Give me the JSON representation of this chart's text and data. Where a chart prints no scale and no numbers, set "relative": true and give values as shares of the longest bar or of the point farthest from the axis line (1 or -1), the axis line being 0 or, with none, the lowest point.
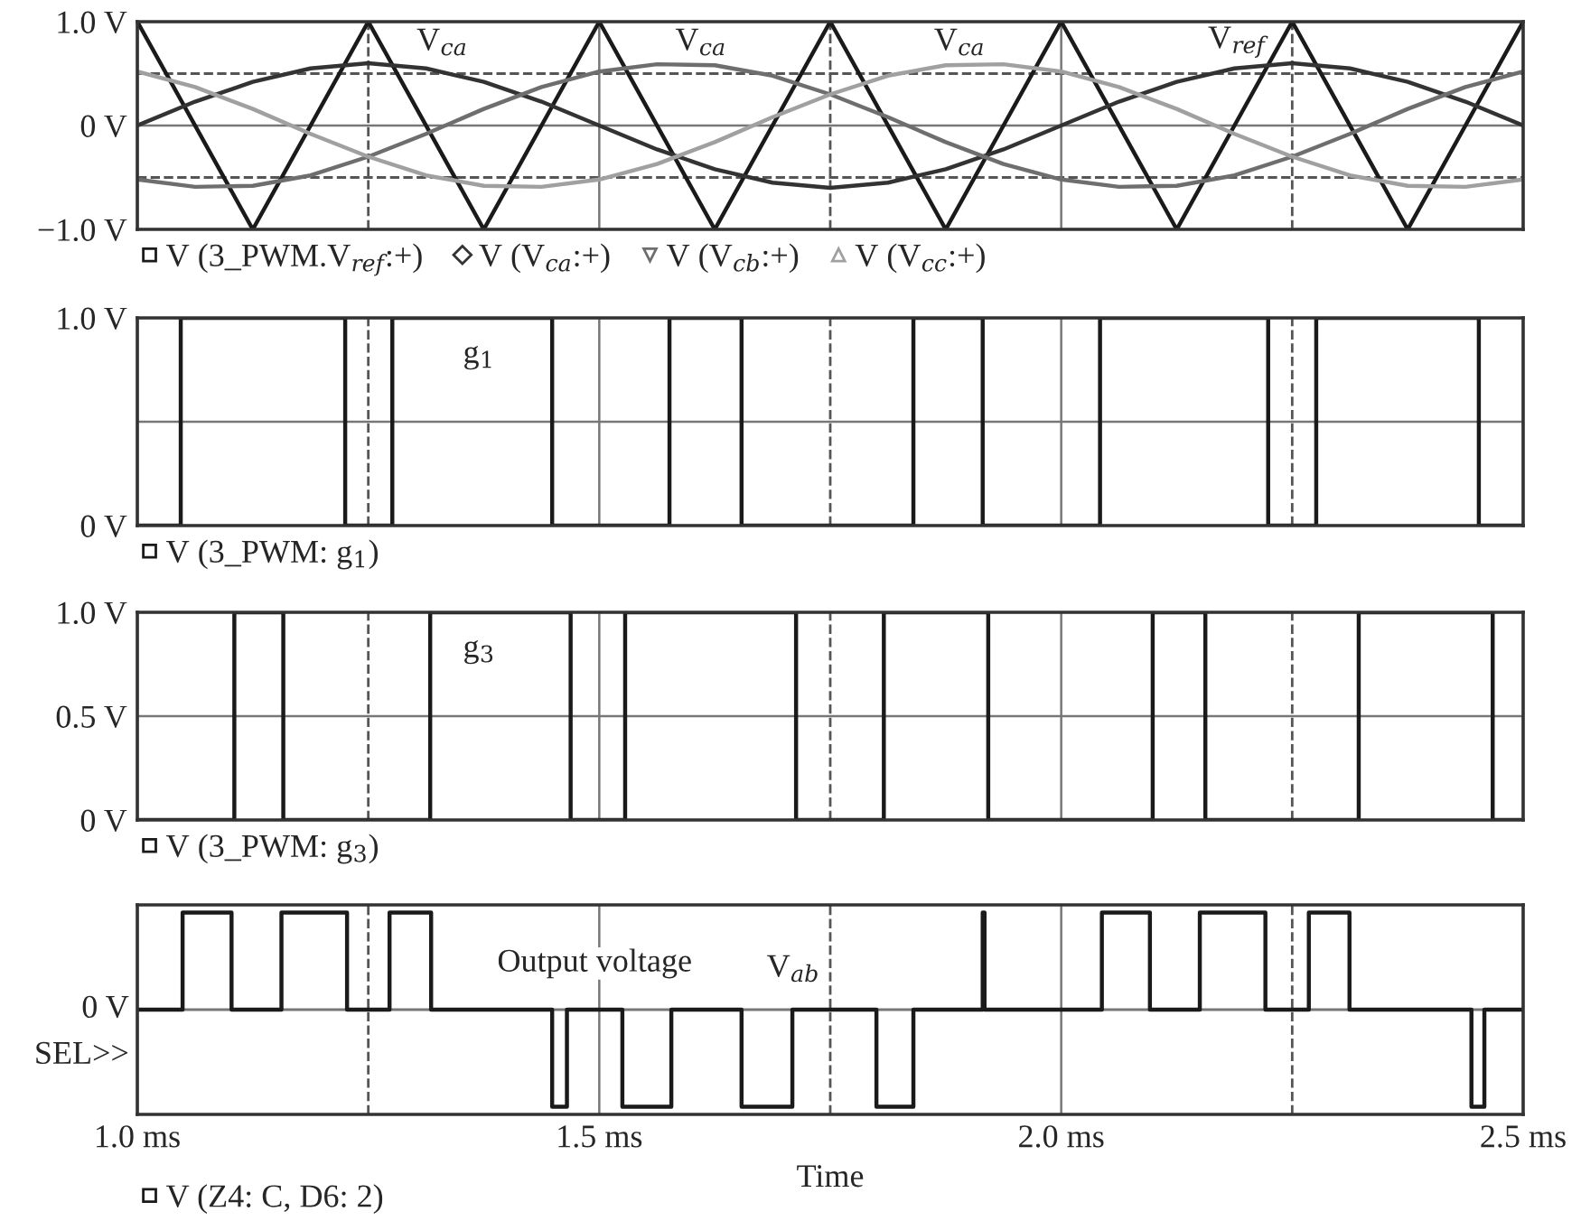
{
  "chart_data": [
    {
      "type": "line",
      "xlim": [
        1.0,
        2.5
      ],
      "xticks": [
        1.0,
        1.5,
        2.0,
        2.5
      ],
      "ylim": [
        -1.0,
        1.0
      ],
      "yticks": [
        {
          "value": -1.0,
          "label": "−1.0 V"
        },
        {
          "value": 0,
          "label": "0 V"
        },
        {
          "value": 1.0,
          "label": "1.0 V"
        }
      ],
      "tick_labels": "y",
      "grid": true,
      "legend": "bottom",
      "series": [
        {
          "name": "V (3_PWM.V$_{ref}$:+)",
          "color": "#1a1a1a",
          "x": [
            1.0,
            1.125,
            1.25,
            1.375,
            1.5,
            1.625,
            1.75,
            1.875,
            2.0,
            2.125,
            2.25,
            2.375,
            2.5
          ],
          "values": [
            1,
            -1,
            1,
            -1,
            1,
            -1,
            1,
            -1,
            1,
            -1,
            1,
            -1,
            1
          ]
        },
        {
          "name": "V (V$_{ca}$:+)",
          "color": "#333333",
          "values": [
            0,
            0.23,
            0.42,
            0.55,
            0.6,
            0.55,
            0.42,
            0.23,
            0,
            -0.23,
            -0.42,
            -0.55,
            -0.6,
            -0.55,
            -0.42,
            -0.23,
            0,
            0.23,
            0.42,
            0.55,
            0.6,
            0.55,
            0.42,
            0.23,
            0
          ]
        },
        {
          "name": "V (V$_{cb}$:+)",
          "color": "#6e6e6e",
          "values": [
            -0.52,
            -0.59,
            -0.58,
            -0.48,
            -0.3,
            -0.08,
            0.16,
            0.37,
            0.52,
            0.59,
            0.58,
            0.48,
            0.3,
            0.08,
            -0.16,
            -0.37,
            -0.52,
            -0.59,
            -0.58,
            -0.48,
            -0.3,
            -0.08,
            0.16,
            0.37,
            0.52
          ]
        },
        {
          "name": "V (V$_{cc}$:+)",
          "color": "#a0a0a0",
          "values": [
            0.52,
            0.37,
            0.16,
            -0.08,
            -0.3,
            -0.48,
            -0.58,
            -0.59,
            -0.52,
            -0.37,
            -0.16,
            0.08,
            0.3,
            0.48,
            0.58,
            0.59,
            0.52,
            0.37,
            0.16,
            -0.08,
            -0.3,
            -0.48,
            -0.58,
            -0.59,
            -0.52
          ]
        }
      ],
      "x": [
        1.0,
        1.0625,
        1.125,
        1.1875,
        1.25,
        1.3125,
        1.375,
        1.4375,
        1.5,
        1.5625,
        1.625,
        1.6875,
        1.75,
        1.8125,
        1.875,
        1.9375,
        2.0,
        2.0625,
        2.125,
        2.1875,
        2.25,
        2.3125,
        2.375,
        2.4375,
        2.5
      ],
      "ref_lines": [
        {
          "axis": "y",
          "value": 0.5,
          "line_style": "dashed"
        },
        {
          "axis": "y",
          "value": -0.5,
          "line_style": "dashed"
        },
        {
          "axis": "x",
          "value": 1.25,
          "line_style": "dashed"
        },
        {
          "axis": "x",
          "value": 1.75,
          "line_style": "dashed"
        },
        {
          "axis": "x",
          "value": 2.25,
          "line_style": "dashed"
        }
      ],
      "annotations": [
        {
          "text": "V$_{ca}$",
          "x": 1.33,
          "y": 0.8
        },
        {
          "text": "V$_{ca}$",
          "x": 1.61,
          "y": 0.8
        },
        {
          "text": "V$_{ca}$",
          "x": 1.89,
          "y": 0.8
        },
        {
          "text": "V$_{ref}$",
          "x": 2.19,
          "y": 0.8
        }
      ]
    },
    {
      "type": "step",
      "xlim": [
        1.0,
        2.5
      ],
      "xticks": [
        1.0,
        1.5,
        2.0,
        2.5
      ],
      "ylim": [
        0,
        1.0
      ],
      "yticks": [
        {
          "value": 0,
          "label": "0 V"
        },
        {
          "value": 0.5,
          "label": null
        },
        {
          "value": 1.0,
          "label": "1.0 V"
        }
      ],
      "tick_labels": "y",
      "grid": true,
      "legend": "bottom",
      "series": [
        {
          "name": "V (3_PWM: g$_{1}$)",
          "color": "#1a1a1a",
          "x": [
            1.0,
            1.047,
            1.225,
            1.276,
            1.449,
            1.576,
            1.654,
            1.84,
            1.915,
            2.042,
            2.224,
            2.276,
            2.452,
            2.5
          ],
          "values": [
            0,
            1,
            0,
            1,
            0,
            1,
            0,
            1,
            0,
            1,
            0,
            1,
            0,
            0
          ]
        }
      ],
      "ref_lines": [
        {
          "axis": "x",
          "value": 1.25,
          "line_style": "dashed"
        },
        {
          "axis": "x",
          "value": 1.75,
          "line_style": "dashed"
        },
        {
          "axis": "x",
          "value": 2.25,
          "line_style": "dashed"
        }
      ],
      "annotations": [
        {
          "text": "g$_{1}$",
          "x": 1.37,
          "y": 0.82
        }
      ]
    },
    {
      "type": "step",
      "xlim": [
        1.0,
        2.5
      ],
      "xticks": [
        1.0,
        1.5,
        2.0,
        2.5
      ],
      "ylim": [
        0,
        1.0
      ],
      "yticks": [
        {
          "value": 0,
          "label": "0 V"
        },
        {
          "value": 0.5,
          "label": "0.5 V"
        },
        {
          "value": 1.0,
          "label": "1.0 V"
        }
      ],
      "tick_labels": "y",
      "grid": true,
      "legend": "bottom",
      "series": [
        {
          "name": "V (3_PWM: g$_{3}$)",
          "color": "#1a1a1a",
          "x": [
            1.0,
            1.105,
            1.158,
            1.317,
            1.469,
            1.528,
            1.713,
            1.808,
            1.921,
            2.099,
            2.156,
            2.322,
            2.467,
            2.5
          ],
          "values": [
            0,
            1,
            0,
            1,
            0,
            1,
            0,
            1,
            0,
            1,
            0,
            1,
            0,
            0
          ]
        }
      ],
      "ref_lines": [
        {
          "axis": "x",
          "value": 1.25,
          "line_style": "dashed"
        },
        {
          "axis": "x",
          "value": 1.75,
          "line_style": "dashed"
        },
        {
          "axis": "x",
          "value": 2.25,
          "line_style": "dashed"
        }
      ],
      "annotations": [
        {
          "text": "g$_{3}$",
          "x": 1.37,
          "y": 0.82
        }
      ]
    },
    {
      "type": "step",
      "relative": true,
      "xlim": [
        1.0,
        2.5
      ],
      "xticks": [
        {
          "value": 1.0,
          "label": "1.0 ms"
        },
        {
          "value": 1.5,
          "label": "1.5 ms"
        },
        {
          "value": 2.0,
          "label": "2.0 ms"
        },
        {
          "value": 2.5,
          "label": "2.5 ms"
        }
      ],
      "tick_labels": "x",
      "grid": "x",
      "legend": "bottom",
      "xlabel": "Time",
      "series": [
        {
          "name": "V (Z4: C, D6: 2)",
          "color": "#1a1a1a",
          "x": [
            1.0,
            1.049,
            1.102,
            1.156,
            1.227,
            1.273,
            1.318,
            1.449,
            1.465,
            1.525,
            1.578,
            1.654,
            1.709,
            1.8,
            1.84,
            1.915,
            1.917,
            2.044,
            2.096,
            2.15,
            2.221,
            2.268,
            2.312,
            2.444,
            2.458,
            2.5
          ],
          "values": [
            0,
            1,
            0,
            1,
            0,
            1,
            0,
            -1,
            0,
            -1,
            0,
            -1,
            0,
            -1,
            0,
            1,
            0,
            1,
            0,
            1,
            0,
            1,
            0,
            -1,
            0,
            0
          ]
        }
      ],
      "ref_lines": [
        {
          "axis": "y",
          "value": 0,
          "label": "0 V",
          "line_style": "solid"
        },
        {
          "axis": "x",
          "value": 1.25,
          "line_style": "dashed"
        },
        {
          "axis": "x",
          "value": 1.75,
          "line_style": "dashed"
        },
        {
          "axis": "x",
          "value": 2.25,
          "line_style": "dashed"
        }
      ],
      "annotations": [
        "Output voltage",
        {
          "text": "V$_{ab}$",
          "x": 1.71,
          "y": 0.42
        },
        "SEL>>"
      ]
    }
  ]
}
